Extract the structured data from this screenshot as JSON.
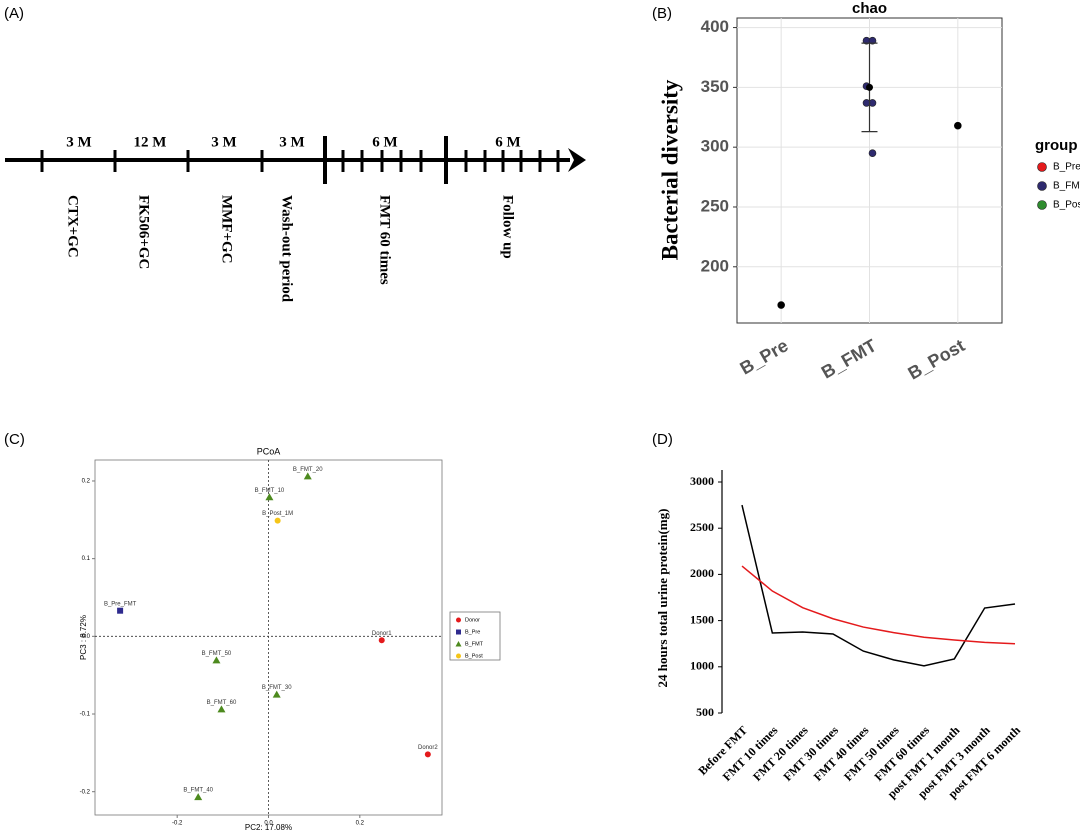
{
  "panel_labels": [
    "(A)",
    "(B)",
    "(C)",
    "(D)"
  ],
  "timeline": {
    "segments": [
      {
        "duration": "3 M",
        "label": "CTX+GC"
      },
      {
        "duration": "12 M",
        "label": "FK506+GC"
      },
      {
        "duration": "3 M",
        "label": "MMF+GC"
      },
      {
        "duration": "3 M",
        "label": "Wash-out period"
      },
      {
        "duration": "6 M",
        "label": "FMT 60 times"
      },
      {
        "duration": "6 M",
        "label": "Follow up"
      }
    ]
  },
  "chart_data": [
    {
      "type": "dot",
      "title": "chao",
      "y_label": "Bacterial diversity",
      "categories": [
        "B_Pre",
        "B_FMT",
        "B_Post"
      ],
      "points": [
        [
          168
        ],
        [
          389,
          389,
          351,
          337,
          337,
          295
        ],
        [
          318
        ]
      ],
      "point_colors": [
        "#000000",
        "#2e2a6e",
        "#000000"
      ],
      "means": [
        168,
        350,
        318
      ],
      "errors": [
        null,
        37,
        null
      ],
      "ylim": [
        153,
        408
      ],
      "yticks": [
        200,
        250,
        300,
        350,
        400
      ],
      "grid": true,
      "legend_title": "group",
      "legend": [
        {
          "name": "B_Pre",
          "color": "#e41a1c"
        },
        {
          "name": "B_FMT",
          "color": "#2e2a6e"
        },
        {
          "name": "B_Post",
          "color": "#2e8b2e"
        }
      ]
    },
    {
      "type": "scatter",
      "title": "PCoA",
      "x_label": "PC2: 17.08%",
      "y_label": "PC3 : 8.72%",
      "xlim": [
        -0.38,
        0.38
      ],
      "ylim": [
        -0.23,
        0.227
      ],
      "xticks": [
        -0.2,
        {
          "value": 0,
          "label": "0.0"
        },
        0.2
      ],
      "yticks": [
        -0.2,
        -0.1,
        {
          "value": 0,
          "label": "0.0"
        },
        0.1,
        0.2
      ],
      "series": [
        {
          "name": "Donor",
          "color": "#e41a1c",
          "shape": "circle",
          "x": [
            0.248,
            0.349
          ],
          "y": [
            -0.005,
            -0.152
          ],
          "labels": [
            "Donor1",
            "Donor2"
          ]
        },
        {
          "name": "B_Pre",
          "color": "#2e2a8e",
          "shape": "square",
          "x": [
            -0.325
          ],
          "y": [
            0.033
          ],
          "labels": [
            "B_Pre_FMT"
          ]
        },
        {
          "name": "B_FMT",
          "color": "#4d8a1e",
          "shape": "triangle",
          "x": [
            0.086,
            0.002,
            -0.114,
            0.018,
            -0.103,
            -0.154
          ],
          "y": [
            0.206,
            0.179,
            -0.031,
            -0.075,
            -0.094,
            -0.207
          ],
          "labels": [
            "B_FMT_20",
            "B_FMT_10",
            "B_FMT_50",
            "B_FMT_30",
            "B_FMT_60",
            "B_FMT_40"
          ]
        },
        {
          "name": "B_Post",
          "color": "#f5c518",
          "shape": "circle",
          "x": [
            0.02
          ],
          "y": [
            0.149
          ],
          "labels": [
            "B_Post_1M"
          ]
        }
      ]
    },
    {
      "type": "line",
      "y_label": "24 hours total urine protein(mg)",
      "categories": [
        "Before FMT",
        "FMT 10 times",
        "FMT 20 times",
        "FMT 30 times",
        "FMT 40 times",
        "FMT 50 times",
        "FMT 60 times",
        "post FMT 1 month",
        "post FMT 3 month",
        "post FMT 6 month"
      ],
      "ylim": [
        500,
        3000
      ],
      "yticks": [
        500,
        1000,
        1500,
        2000,
        2500,
        3000
      ],
      "series": [
        {
          "color": "#000000",
          "values": [
            2750,
            1366,
            1377,
            1355,
            1170,
            1075,
            1010,
            1085,
            1636,
            1680
          ]
        },
        {
          "color": "#e41a1c",
          "values": [
            2090,
            1820,
            1640,
            1520,
            1430,
            1370,
            1320,
            1290,
            1265,
            1250
          ]
        }
      ]
    }
  ]
}
